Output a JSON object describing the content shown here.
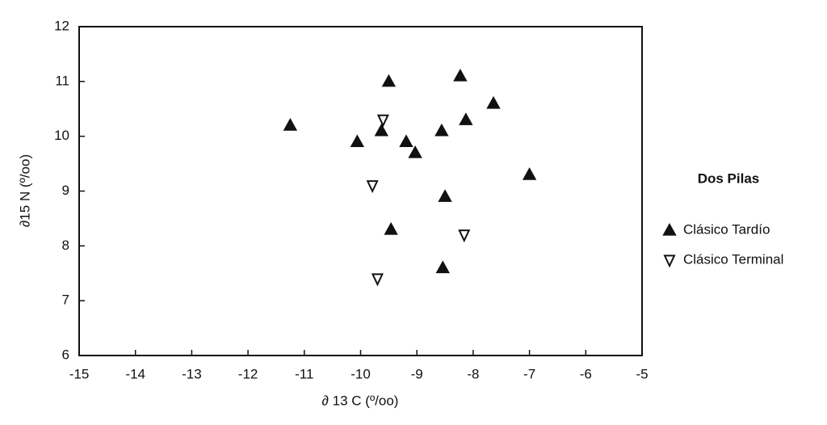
{
  "chart_data": {
    "type": "scatter",
    "x_label": "∂ 13 C (º/oo)",
    "y_label": "∂15 N (º/oo)",
    "xlim": [
      -15,
      -5
    ],
    "xticks": [
      -15,
      -14,
      -13,
      -12,
      -11,
      -10,
      -9,
      -8,
      -7,
      -6,
      -5
    ],
    "ylim": [
      6,
      12
    ],
    "yticks": [
      6,
      7,
      8,
      9,
      10,
      11,
      12
    ],
    "grid": false,
    "legend_title": "Dos Pilas",
    "legend_position": "right",
    "series": [
      {
        "name": "Clásico Tardío",
        "color": "#111111",
        "marker": "triangle-up-filled",
        "x": [
          -11.25,
          -9.5,
          -8.23,
          -7.64,
          -10.06,
          -9.63,
          -9.19,
          -9.03,
          -8.56,
          -8.13,
          -7.0,
          -8.5,
          -9.46,
          -8.54
        ],
        "y": [
          10.2,
          11.0,
          11.1,
          10.6,
          9.9,
          10.1,
          9.9,
          9.7,
          10.1,
          10.3,
          9.3,
          8.9,
          8.3,
          7.6
        ]
      },
      {
        "name": "Clásico Terminal",
        "color": "#111111",
        "marker": "triangle-down-open",
        "x": [
          -9.6,
          -9.79,
          -8.16,
          -9.7
        ],
        "y": [
          10.3,
          9.1,
          8.2,
          7.4
        ]
      }
    ]
  }
}
